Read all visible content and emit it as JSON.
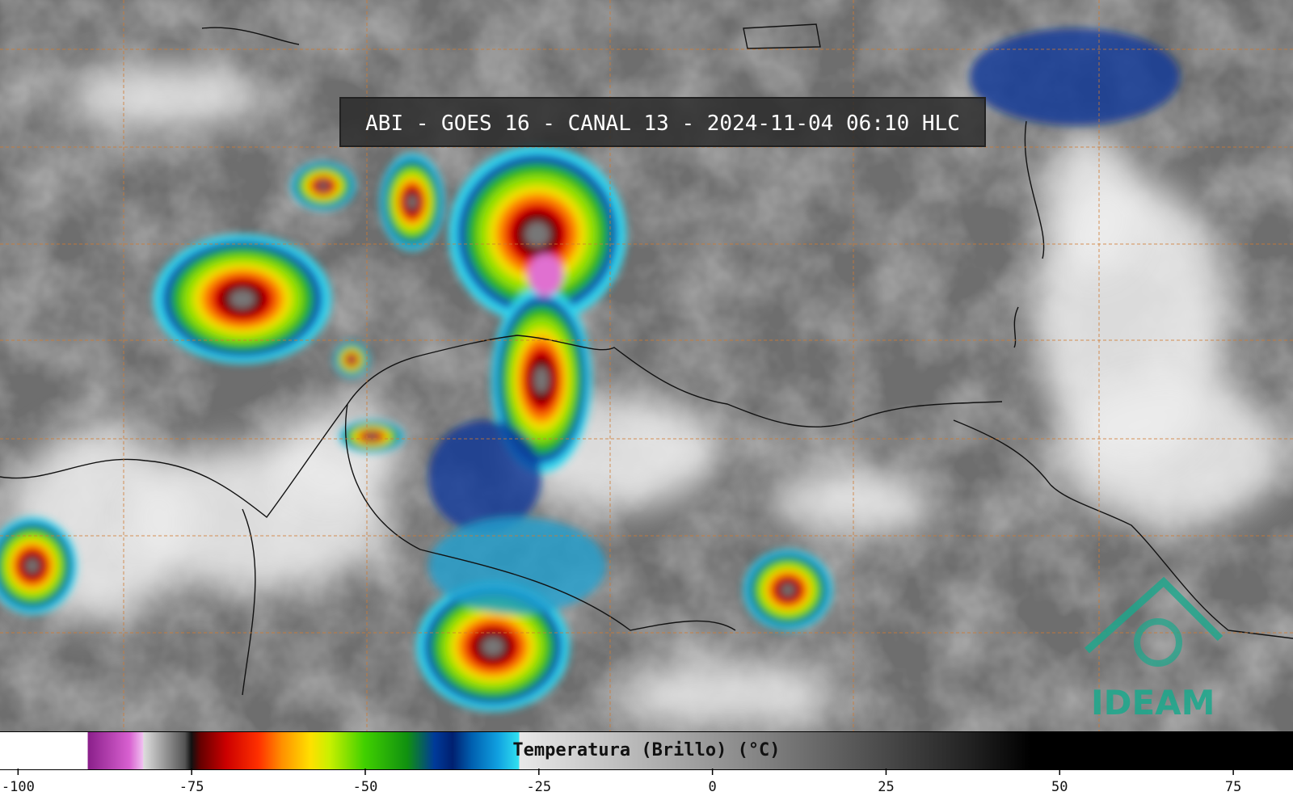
{
  "map": {
    "title": "ABI - GOES 16 - CANAL 13 - 2024-11-04 06:10 HLC",
    "logo": "IDEAM",
    "colorbar": {
      "label": "Temperatura (Brillo) (°C)",
      "xlim": [
        -102.6,
        83.6
      ],
      "xticks": [
        -100,
        -75,
        -50,
        -25,
        0,
        25,
        50,
        75
      ]
    }
  }
}
